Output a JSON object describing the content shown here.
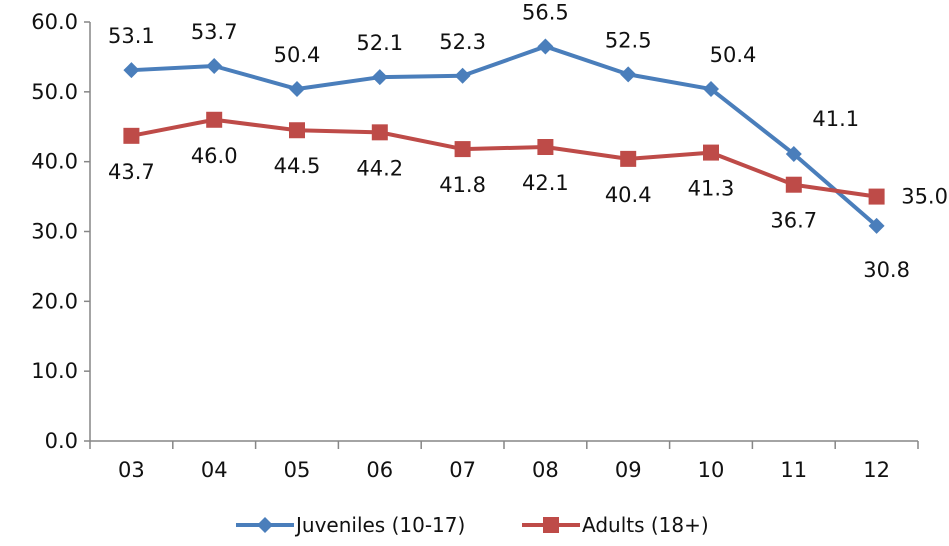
{
  "chart_data": {
    "type": "line",
    "title": "",
    "xlabel": "",
    "ylabel": "",
    "categories": [
      "03",
      "04",
      "05",
      "06",
      "07",
      "08",
      "09",
      "10",
      "11",
      "12"
    ],
    "ylim": [
      0,
      60
    ],
    "yticks": [
      0,
      10,
      20,
      30,
      40,
      50,
      60
    ],
    "ytick_labels": [
      "0.0",
      "10.0",
      "20.0",
      "30.0",
      "40.0",
      "50.0",
      "60.0"
    ],
    "grid": false,
    "legend_position": "bottom",
    "series": [
      {
        "name": "Juveniles (10-17)",
        "color": "#4a7ebb",
        "marker": "diamond",
        "values": [
          53.1,
          53.7,
          50.4,
          52.1,
          52.3,
          56.5,
          52.5,
          50.4,
          41.1,
          30.8
        ],
        "data_labels": [
          "53.1",
          "53.7",
          "50.4",
          "52.1",
          "52.3",
          "56.5",
          "52.5",
          "50.4",
          "41.1",
          "30.8"
        ]
      },
      {
        "name": "Adults (18+)",
        "color": "#be4b48",
        "marker": "square",
        "values": [
          43.7,
          46.0,
          44.5,
          44.2,
          41.8,
          42.1,
          40.4,
          41.3,
          36.7,
          35.0
        ],
        "data_labels": [
          "43.7",
          "46.0",
          "44.5",
          "44.2",
          "41.8",
          "42.1",
          "40.4",
          "41.3",
          "36.7",
          "35.0"
        ]
      }
    ]
  }
}
